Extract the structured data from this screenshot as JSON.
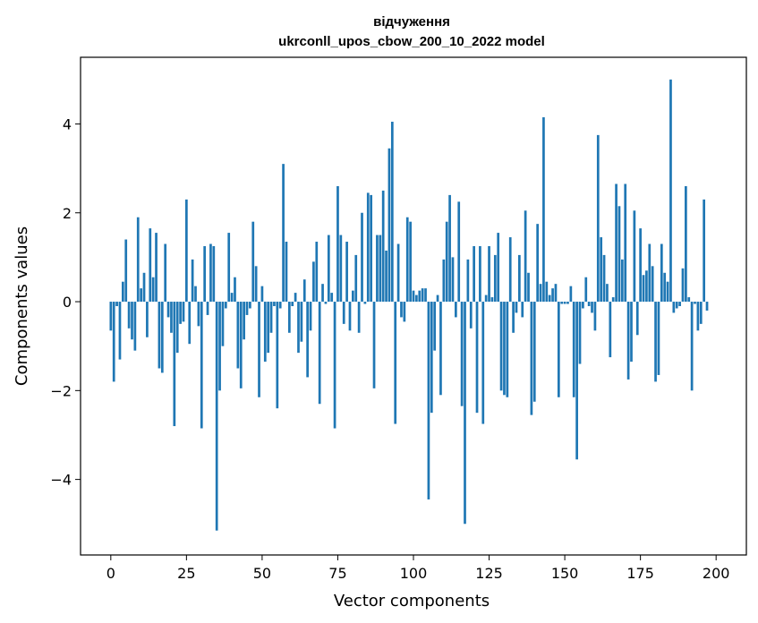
{
  "chart_data": {
    "type": "bar",
    "title": [
      "відчуження",
      "ukrconll_upos_cbow_200_10_2022 model"
    ],
    "xlabel": "Vector components",
    "ylabel": "Components values",
    "xlim": [
      -10,
      210
    ],
    "ylim": [
      -5.7,
      5.5
    ],
    "xticks": [
      0,
      25,
      50,
      75,
      100,
      125,
      150,
      175,
      200
    ],
    "xtick_labels": [
      "0",
      "25",
      "50",
      "75",
      "100",
      "125",
      "150",
      "175",
      "200"
    ],
    "yticks": [
      -4,
      -2,
      0,
      2,
      4
    ],
    "ytick_labels": [
      "−4",
      "−2",
      "0",
      "2",
      "4"
    ],
    "bar_color": "#1f77b4",
    "grid": false,
    "values": [
      -0.65,
      -1.8,
      -0.1,
      -1.3,
      0.45,
      1.4,
      -0.6,
      -0.85,
      -1.1,
      1.9,
      0.3,
      0.65,
      -0.8,
      1.65,
      0.55,
      1.55,
      -1.5,
      -1.6,
      1.3,
      -0.35,
      -0.7,
      -2.8,
      -1.15,
      -0.5,
      -0.45,
      2.3,
      -0.95,
      0.95,
      0.35,
      -0.55,
      -2.85,
      1.25,
      -0.3,
      1.3,
      1.25,
      -5.15,
      -2.0,
      -1.0,
      -0.15,
      1.55,
      0.2,
      0.55,
      -1.5,
      -1.95,
      -0.85,
      -0.3,
      -0.15,
      1.8,
      0.8,
      -2.15,
      0.35,
      -1.35,
      -1.15,
      -0.7,
      -0.1,
      -2.4,
      -0.15,
      3.1,
      1.35,
      -0.7,
      -0.1,
      0.2,
      -1.15,
      -0.9,
      0.5,
      -1.7,
      -0.65,
      0.9,
      1.35,
      -2.3,
      0.4,
      -0.05,
      1.5,
      0.2,
      -2.85,
      2.6,
      1.5,
      -0.5,
      1.35,
      -0.65,
      0.25,
      1.05,
      -0.7,
      2.0,
      -0.05,
      2.45,
      2.4,
      -1.95,
      1.5,
      1.5,
      2.5,
      1.15,
      3.45,
      4.05,
      -2.75,
      1.3,
      -0.35,
      -0.45,
      1.9,
      1.8,
      0.25,
      0.15,
      0.25,
      0.3,
      0.3,
      -4.45,
      -2.5,
      -1.1,
      0.15,
      -2.1,
      0.95,
      1.8,
      2.4,
      1.0,
      -0.35,
      2.25,
      -2.35,
      -5.0,
      0.95,
      -0.6,
      1.25,
      -2.5,
      1.25,
      -2.75,
      0.15,
      1.25,
      0.1,
      1.05,
      1.55,
      -2.0,
      -2.1,
      -2.15,
      1.45,
      -0.7,
      -0.25,
      1.05,
      -0.35,
      2.05,
      0.65,
      -2.55,
      -2.25,
      1.75,
      0.4,
      4.15,
      0.45,
      0.15,
      0.3,
      0.4,
      -2.15,
      -0.05,
      -0.05,
      -0.05,
      0.35,
      -2.15,
      -3.55,
      -1.4,
      -0.15,
      0.55,
      -0.1,
      -0.25,
      -0.65,
      3.75,
      1.45,
      1.05,
      0.4,
      -1.25,
      0.1,
      2.65,
      2.15,
      0.95,
      2.65,
      -1.75,
      -1.35,
      2.05,
      -0.75,
      1.65,
      0.6,
      0.7,
      1.3,
      0.8,
      -1.8,
      -1.65,
      1.3,
      0.65,
      0.45,
      5.0,
      -0.25,
      -0.15,
      -0.1,
      0.75,
      2.6,
      0.1,
      -2.0,
      -0.05,
      -0.65,
      -0.5,
      2.3,
      -0.2
    ]
  }
}
